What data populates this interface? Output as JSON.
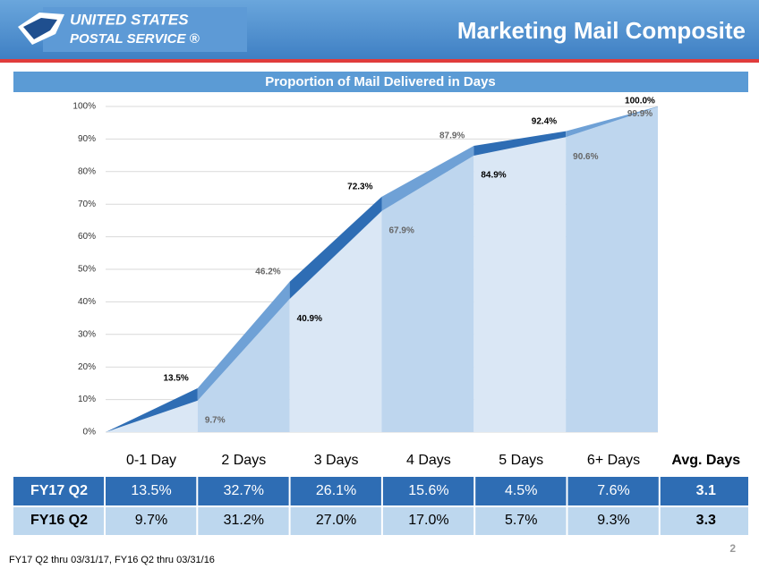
{
  "header": {
    "logo_line1": "UNITED STATES",
    "logo_line2": "POSTAL SERVICE ®",
    "title": "Marketing Mail Composite"
  },
  "chart_data": {
    "type": "area",
    "title": "Proportion of Mail Delivered in Days",
    "ylim": [
      0,
      100
    ],
    "yticks": [
      {
        "value": 0,
        "label": "0%"
      },
      {
        "value": 10,
        "label": "10%"
      },
      {
        "value": 20,
        "label": "20%"
      },
      {
        "value": 30,
        "label": "30%"
      },
      {
        "value": 40,
        "label": "40%"
      },
      {
        "value": 50,
        "label": "50%"
      },
      {
        "value": 60,
        "label": "60%"
      },
      {
        "value": 70,
        "label": "70%"
      },
      {
        "value": 80,
        "label": "80%"
      },
      {
        "value": 90,
        "label": "90%"
      },
      {
        "value": 100,
        "label": "100%"
      }
    ],
    "grid": true,
    "series": [
      {
        "color": "#2e6db4",
        "alt_color": "#6fa1d6",
        "values": [
          0,
          13.5,
          46.2,
          72.3,
          87.9,
          92.4,
          100.0
        ],
        "value_labels": [
          null,
          "13.5%",
          "46.2%",
          "72.3%",
          "87.9%",
          "92.4%",
          "100.0%"
        ]
      },
      {
        "color": "#bed6ee",
        "alt_color": "#dae7f5",
        "values": [
          0,
          9.7,
          40.9,
          67.9,
          84.9,
          90.6,
          99.9
        ],
        "value_labels": [
          null,
          "9.7%",
          "40.9%",
          "67.9%",
          "84.9%",
          "90.6%",
          "99.9%"
        ]
      }
    ]
  },
  "table": {
    "header": [
      "0-1 Day",
      "2 Days",
      "3 Days",
      "4 Days",
      "5 Days",
      "6+ Days",
      "Avg. Days"
    ],
    "rows": [
      {
        "label": "FY17 Q2",
        "cells": [
          "13.5%",
          "32.7%",
          "26.1%",
          "15.6%",
          "4.5%",
          "7.6%",
          "3.1"
        ]
      },
      {
        "label": "FY16 Q2",
        "cells": [
          "9.7%",
          "31.2%",
          "27.0%",
          "17.0%",
          "5.7%",
          "9.3%",
          "3.3"
        ]
      }
    ]
  },
  "footer": {
    "note": "FY17 Q2 thru 03/31/17, FY16 Q2 thru 03/31/16",
    "page": "2"
  }
}
